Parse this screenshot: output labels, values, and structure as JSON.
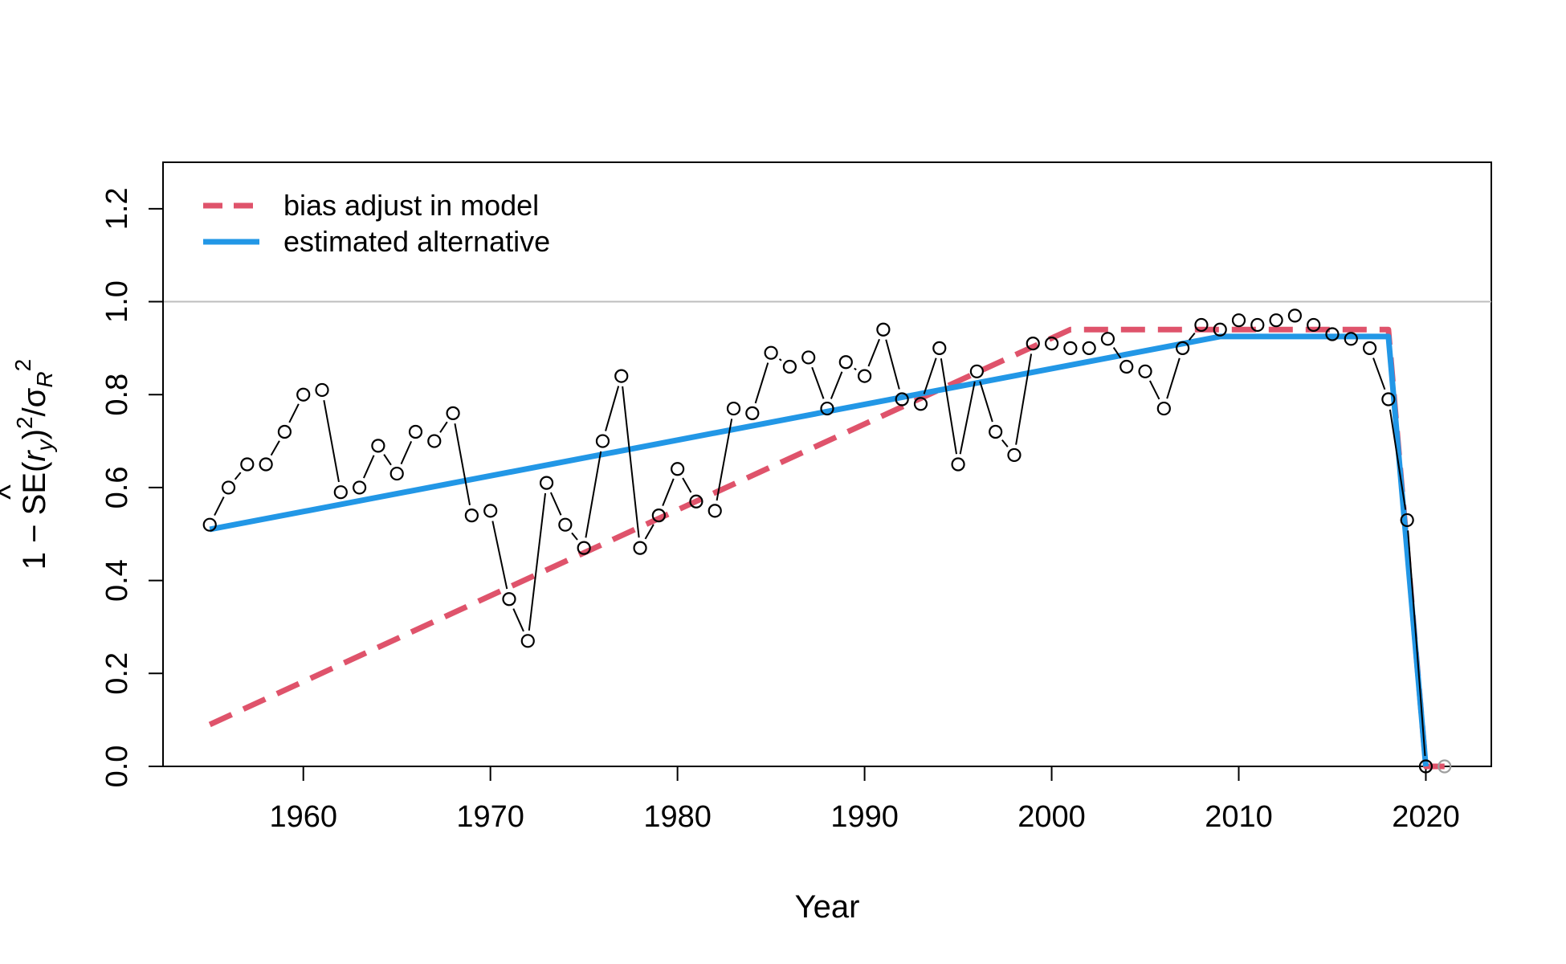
{
  "chart_data": {
    "type": "line",
    "title": "",
    "xlabel": "Year",
    "ylabel": "1 − SE(r̂y)²/σR²",
    "ylabel_parts": {
      "prefix": "1 − SE(",
      "hat": "^",
      "r": "r",
      "r_sub": "y",
      "close": ")",
      "sq1": "2",
      "slash": "/σ",
      "sigma_sub": "R",
      "sq2": "2"
    },
    "xlim": [
      1952.5,
      2023.5
    ],
    "ylim": [
      0,
      1.3
    ],
    "x_ticks": [
      1960,
      1970,
      1980,
      1990,
      2000,
      2010,
      2020
    ],
    "y_ticks": [
      0.0,
      0.2,
      0.4,
      0.6,
      0.8,
      1.0,
      1.2
    ],
    "x_tick_labels": [
      "1960",
      "1970",
      "1980",
      "1990",
      "2000",
      "2010",
      "2020"
    ],
    "y_tick_labels": [
      "0.0",
      "0.2",
      "0.4",
      "0.6",
      "0.8",
      "1.0",
      "1.2"
    ],
    "reference_line": {
      "y": 1.0,
      "color": "#bebebe"
    },
    "legend_position": "top-left",
    "legend": [
      {
        "label": "bias adjust in model",
        "color": "#DF536B",
        "style": "dashed"
      },
      {
        "label": "estimated alternative",
        "color": "#2297E6",
        "style": "solid"
      }
    ],
    "points": {
      "name": "1 - SE^2/sigmaR^2 by year",
      "color": "#000000",
      "x": [
        1955,
        1956,
        1957,
        1958,
        1959,
        1960,
        1961,
        1962,
        1963,
        1964,
        1965,
        1966,
        1967,
        1968,
        1969,
        1970,
        1971,
        1972,
        1973,
        1974,
        1975,
        1976,
        1977,
        1978,
        1979,
        1980,
        1981,
        1982,
        1983,
        1984,
        1985,
        1986,
        1987,
        1988,
        1989,
        1990,
        1991,
        1992,
        1993,
        1994,
        1995,
        1996,
        1997,
        1998,
        1999,
        2000,
        2001,
        2002,
        2003,
        2004,
        2005,
        2006,
        2007,
        2008,
        2009,
        2010,
        2011,
        2012,
        2013,
        2014,
        2015,
        2016,
        2017,
        2018,
        2019,
        2020
      ],
      "y": [
        0.52,
        0.6,
        0.65,
        0.65,
        0.72,
        0.8,
        0.81,
        0.59,
        0.6,
        0.69,
        0.63,
        0.72,
        0.7,
        0.76,
        0.54,
        0.55,
        0.36,
        0.27,
        0.61,
        0.52,
        0.47,
        0.7,
        0.84,
        0.47,
        0.54,
        0.64,
        0.57,
        0.55,
        0.77,
        0.76,
        0.89,
        0.86,
        0.88,
        0.77,
        0.87,
        0.84,
        0.94,
        0.79,
        0.78,
        0.9,
        0.65,
        0.85,
        0.72,
        0.67,
        0.91,
        0.91,
        0.9,
        0.9,
        0.92,
        0.86,
        0.85,
        0.77,
        0.9,
        0.95,
        0.94,
        0.96,
        0.95,
        0.96,
        0.97,
        0.95,
        0.93,
        0.92,
        0.9,
        0.79,
        0.53,
        0.0
      ]
    },
    "extra_point": {
      "x": 2021,
      "y": 0.0,
      "color": "#9e9e9e"
    },
    "series": [
      {
        "name": "bias adjust in model",
        "color": "#DF536B",
        "style": "dashed",
        "x": [
          1955,
          2001,
          2018,
          2020,
          2021
        ],
        "y": [
          0.09,
          0.94,
          0.94,
          0.0,
          0.0
        ]
      },
      {
        "name": "estimated alternative",
        "color": "#2297E6",
        "style": "solid",
        "x": [
          1955,
          2009,
          2018,
          2020
        ],
        "y": [
          0.51,
          0.925,
          0.925,
          0.0
        ]
      }
    ]
  }
}
